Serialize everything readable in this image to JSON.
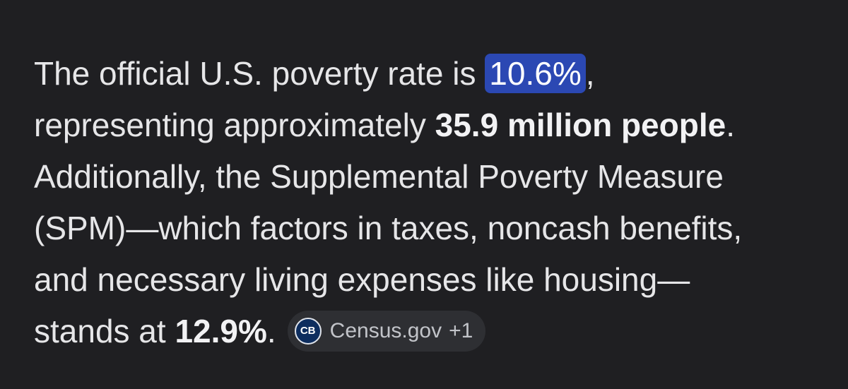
{
  "answer": {
    "lines": [
      [
        "The official U.S. poverty rate is ",
        "10.6%",
        ","
      ],
      [
        "representing approximately ",
        "35.9 million people",
        "."
      ],
      [
        "Additionally, the Supplemental Poverty Measure"
      ],
      [
        "(SPM)—which factors in taxes, noncash benefits,"
      ],
      [
        "and necessary living expenses like housing—"
      ],
      [
        "stands at ",
        "12.9%",
        "."
      ]
    ],
    "source": {
      "logo": "CB",
      "name": "Census.gov",
      "more": "+1"
    }
  }
}
